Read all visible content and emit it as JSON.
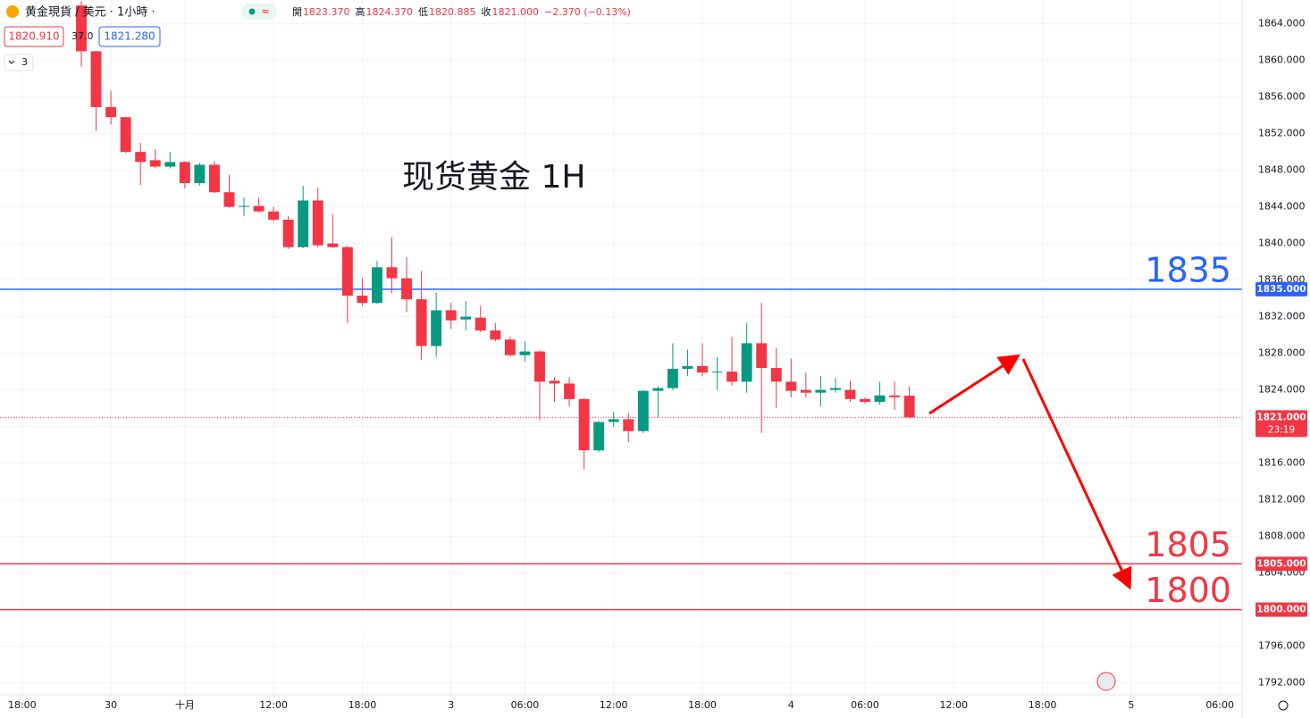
{
  "header": {
    "symbol": "黄金現貨 / 美元 · 1小時 ·",
    "ohlc": [
      {
        "label": "開",
        "value": "1823.370"
      },
      {
        "label": "高",
        "value": "1824.370"
      },
      {
        "label": "低",
        "value": "1820.885"
      },
      {
        "label": "收",
        "value": "1821.000"
      }
    ],
    "change": "−2.370 (−0.13%)",
    "bid": "1820.910",
    "spread": "37.0",
    "ask": "1821.280",
    "indicators": "3"
  },
  "chart_data": {
    "type": "candlestick",
    "annotation": "现货黄金 1H",
    "categories": [
      null,
      "18:00",
      null,
      null,
      null,
      null,
      null,
      "30",
      null,
      null,
      null,
      null,
      "十月",
      null,
      null,
      null,
      null,
      null,
      "12:00",
      null,
      null,
      null,
      null,
      null,
      "18:00",
      null,
      null,
      null,
      null,
      null,
      "3",
      null,
      null,
      null,
      null,
      "06:00",
      null,
      null,
      null,
      null,
      null,
      "12:00",
      null,
      null,
      null,
      null,
      null,
      "18:00",
      null,
      null,
      null,
      null,
      null,
      "4",
      null,
      null,
      null,
      null,
      "06:00",
      null,
      null,
      null,
      null,
      null,
      "12:00",
      null,
      null,
      null,
      null,
      null,
      "18:00",
      null,
      null,
      null,
      null,
      null,
      "5",
      null,
      null,
      null,
      null,
      null,
      "06:00",
      null
    ],
    "open": [
      null,
      null,
      null,
      null,
      null,
      1866,
      1861,
      1854.9,
      1853.8,
      1850,
      1849.1,
      1848.4,
      1848.9,
      1846.6,
      1848.6,
      1845.6,
      1844,
      1844.1,
      1843.5,
      1842.6,
      1839.6,
      1844.7,
      1840,
      1839.6,
      1834.3,
      1833.5,
      1837.4,
      1836.2,
      1833.9,
      1828.8,
      1832.7,
      1831.7,
      1831.9,
      1830.5,
      1829.5,
      1827.8,
      1828.2,
      1825,
      1824.7,
      1823,
      1817.4,
      1820.5,
      1820.8,
      1819.5,
      1823.9,
      1824.2,
      1826.3,
      1826.6,
      1825.9,
      1826,
      1824.9,
      1829.1,
      1826.4,
      1824.9,
      1824,
      1823.7,
      1824,
      1824,
      1823,
      1822.7,
      1823.4,
      1823.37,
      null,
      null,
      null,
      null,
      null,
      null,
      null,
      null,
      null,
      null,
      null,
      null,
      null,
      null,
      null,
      null,
      null,
      null,
      null,
      null,
      null,
      null
    ],
    "high": [
      null,
      null,
      null,
      null,
      null,
      1866.5,
      1861,
      1856.7,
      1853.8,
      1851,
      1850.3,
      1850,
      1849,
      1848.8,
      1849,
      1847.5,
      1845,
      1845,
      1844,
      1843,
      1846.3,
      1846.1,
      1843.2,
      1839.7,
      1836.2,
      1838.1,
      1840.7,
      1838.5,
      1837,
      1834.6,
      1833.5,
      1833.7,
      1833.2,
      1831.3,
      1829.8,
      1829.3,
      1828.3,
      1825.4,
      1825.4,
      1823.1,
      1820.6,
      1821.6,
      1821.5,
      1824,
      1824.4,
      1829.1,
      1828.4,
      1829.1,
      1827.6,
      1829.8,
      1831.3,
      1833.5,
      1828.6,
      1827.4,
      1825.9,
      1825.5,
      1825.3,
      1825,
      1823.2,
      1824.9,
      1824.9,
      1824.37,
      null,
      null,
      null,
      null,
      null,
      null,
      null,
      null,
      null,
      null,
      null,
      null,
      null,
      null,
      null,
      null,
      null,
      null,
      null,
      null,
      null,
      null
    ],
    "low": [
      null,
      null,
      null,
      null,
      null,
      1859.3,
      1852.3,
      1853,
      1849.9,
      1846.4,
      1848.2,
      1848.2,
      1846,
      1846.3,
      1845.5,
      1843.9,
      1843,
      1843.4,
      1842.4,
      1839.4,
      1839.5,
      1839.6,
      1839.5,
      1831.3,
      1833.2,
      1833.4,
      1834.6,
      1832.5,
      1827.3,
      1827.6,
      1830.7,
      1830.5,
      1830.3,
      1829.3,
      1827.6,
      1827.1,
      1820.7,
      1822.7,
      1822.2,
      1815.3,
      1817.2,
      1820,
      1818.3,
      1819.3,
      1821,
      1824,
      1825.5,
      1825.5,
      1824,
      1824.5,
      1823.7,
      1819.3,
      1822,
      1823.2,
      1823.2,
      1822.2,
      1823.7,
      1822.7,
      1822.5,
      1822.4,
      1821.8,
      1820.885,
      null,
      null,
      null,
      null,
      null,
      null,
      null,
      null,
      null,
      null,
      null,
      null,
      null,
      null,
      null,
      null,
      null,
      null,
      null,
      null,
      null,
      null
    ],
    "close": [
      null,
      null,
      null,
      null,
      null,
      1861,
      1854.9,
      1853.8,
      1850,
      1848.9,
      1848.4,
      1848.9,
      1846.6,
      1848.6,
      1845.6,
      1844,
      1844.1,
      1843.5,
      1842.6,
      1839.6,
      1844.7,
      1839.8,
      1839.6,
      1834.3,
      1833.5,
      1837.4,
      1836.2,
      1833.9,
      1828.8,
      1832.7,
      1831.6,
      1832,
      1830.5,
      1829.5,
      1827.8,
      1828.2,
      1824.9,
      1824.7,
      1823,
      1817.4,
      1820.5,
      1820.8,
      1819.5,
      1823.9,
      1824.2,
      1826.3,
      1826.6,
      1825.9,
      1826,
      1824.9,
      1829.1,
      1826.4,
      1824.9,
      1823.9,
      1823.7,
      1824,
      1824.2,
      1823,
      1822.7,
      1823.4,
      1823.2,
      1821,
      null,
      null,
      null,
      null,
      null,
      null,
      null,
      null,
      null,
      null,
      null,
      null,
      null,
      null,
      null,
      null,
      null,
      null,
      null,
      null,
      null,
      null
    ],
    "up_color": "#089981",
    "down_color": "#f23645",
    "ylim": [
      1790.5,
      1866.6
    ],
    "yticks": [
      {
        "value": 1792,
        "label": "1792.000"
      },
      {
        "value": 1796,
        "label": "1796.000"
      },
      {
        "value": 1800,
        "label": "1800.000"
      },
      {
        "value": 1804,
        "label": "1804.000"
      },
      {
        "value": 1808,
        "label": "1808.000"
      },
      {
        "value": 1812,
        "label": "1812.000"
      },
      {
        "value": 1816,
        "label": "1816.000"
      },
      {
        "value": 1820,
        "label": "1820.000"
      },
      {
        "value": 1824,
        "label": "1824.000"
      },
      {
        "value": 1828,
        "label": "1828.000"
      },
      {
        "value": 1832,
        "label": "1832.000"
      },
      {
        "value": 1836,
        "label": "1836.000"
      },
      {
        "value": 1840,
        "label": "1840.000"
      },
      {
        "value": 1844,
        "label": "1844.000"
      },
      {
        "value": 1848,
        "label": "1848.000"
      },
      {
        "value": 1852,
        "label": "1852.000"
      },
      {
        "value": 1856,
        "label": "1856.000"
      },
      {
        "value": 1860,
        "label": "1860.000"
      },
      {
        "value": 1864,
        "label": "1864.000"
      }
    ],
    "grid": true,
    "levels": [
      {
        "value": 1835,
        "label": "1835.000",
        "text": "1835",
        "color": "#2962ff"
      },
      {
        "value": 1805,
        "label": "1805.000",
        "text": "1805",
        "color": "#f23645"
      },
      {
        "value": 1800,
        "label": "1800.000",
        "text": "1800",
        "color": "#f23645"
      }
    ],
    "last_price": {
      "value": 1821,
      "label": "1821.000",
      "countdown": "23:19",
      "color": "#f23645"
    }
  }
}
